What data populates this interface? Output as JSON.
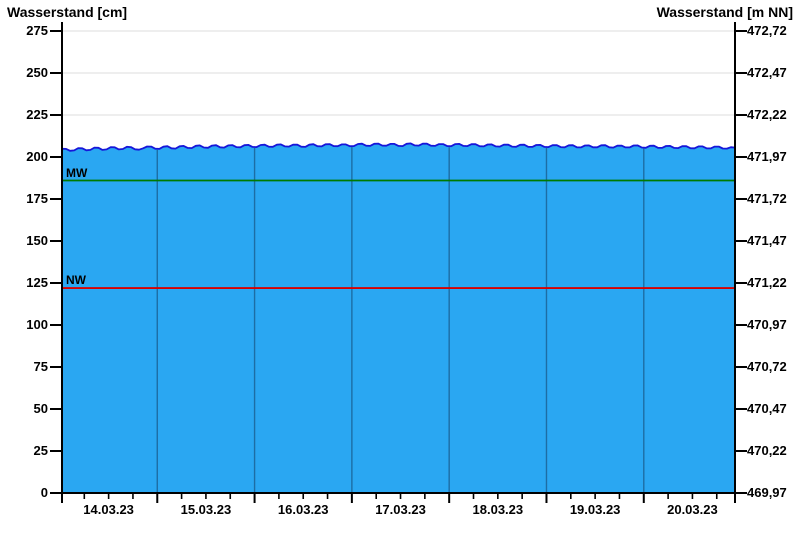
{
  "chart_data": {
    "type": "area",
    "title": "Wasserstand",
    "y_left": {
      "label": "Wasserstand [cm]",
      "ticks": [
        0,
        25,
        50,
        75,
        100,
        125,
        150,
        175,
        200,
        225,
        250,
        275
      ],
      "range": [
        0,
        275
      ]
    },
    "y_right": {
      "label": "Wasserstand [m NN]",
      "ticks": [
        "469,97",
        "470,22",
        "470,47",
        "470,72",
        "470,97",
        "471,22",
        "471,47",
        "471,72",
        "471,97",
        "472,22",
        "472,47",
        "472,72"
      ]
    },
    "x": {
      "tick_labels": [
        "14.03.23",
        "15.03.23",
        "16.03.23",
        "17.03.23",
        "18.03.23",
        "19.03.23",
        "20.03.23"
      ],
      "t_domain_hours": [
        0.5,
        166.5
      ],
      "day_label_center_hours": [
        12,
        36,
        60,
        84,
        108,
        132,
        156
      ],
      "day_boundary_hours": [
        24,
        48,
        72,
        96,
        120,
        144
      ],
      "minor_tick_hours": [
        6,
        12,
        18,
        30,
        36,
        42,
        54,
        60,
        66,
        78,
        84,
        90,
        102,
        108,
        114,
        126,
        132,
        138,
        150,
        156,
        162
      ],
      "grid": "on"
    },
    "series": {
      "name": "Wasserstand",
      "unit": "cm",
      "t_start_hours": 0.5,
      "t_step_hours": 2,
      "values_cm": [
        204.9,
        203.7,
        205.3,
        204.0,
        205.6,
        204.2,
        205.9,
        204.5,
        206.1,
        204.6,
        205.2,
        206.2,
        204.8,
        206.4,
        205.0,
        206.6,
        205.3,
        206.9,
        205.5,
        207.0,
        205.6,
        207.1,
        205.8,
        207.2,
        205.9,
        207.3,
        206.1,
        207.5,
        206.2,
        207.4,
        206.0,
        207.6,
        206.3,
        207.7,
        206.4,
        207.5,
        206.5,
        207.9,
        206.6,
        208.0,
        206.7,
        207.8,
        206.5,
        208.1,
        206.8,
        207.9,
        206.6,
        207.7,
        206.4,
        207.8,
        206.5,
        207.6,
        206.3,
        207.5,
        206.2,
        207.4,
        206.1,
        207.3,
        206.0,
        207.2,
        205.9,
        207.1,
        205.8,
        207.0,
        205.7,
        206.9,
        205.8,
        207.0,
        205.6,
        206.8,
        205.7,
        206.9,
        205.5,
        206.7,
        205.4,
        206.6,
        205.3,
        206.4,
        205.2,
        206.3,
        205.1,
        206.2,
        205.0,
        205.6
      ]
    },
    "reference_lines": [
      {
        "name": "MW",
        "value_cm": 186,
        "color": "#007a00"
      },
      {
        "name": "NW",
        "value_cm": 122,
        "color": "#d90000"
      }
    ],
    "colors": {
      "area_fill": "#2aa7f2",
      "area_edge": "#1616d9",
      "grid_horizontal": "#dcdcdc",
      "grid_day_line": "#1d6da4",
      "axis": "#000000",
      "background": "#ffffff"
    },
    "legend": "none"
  }
}
